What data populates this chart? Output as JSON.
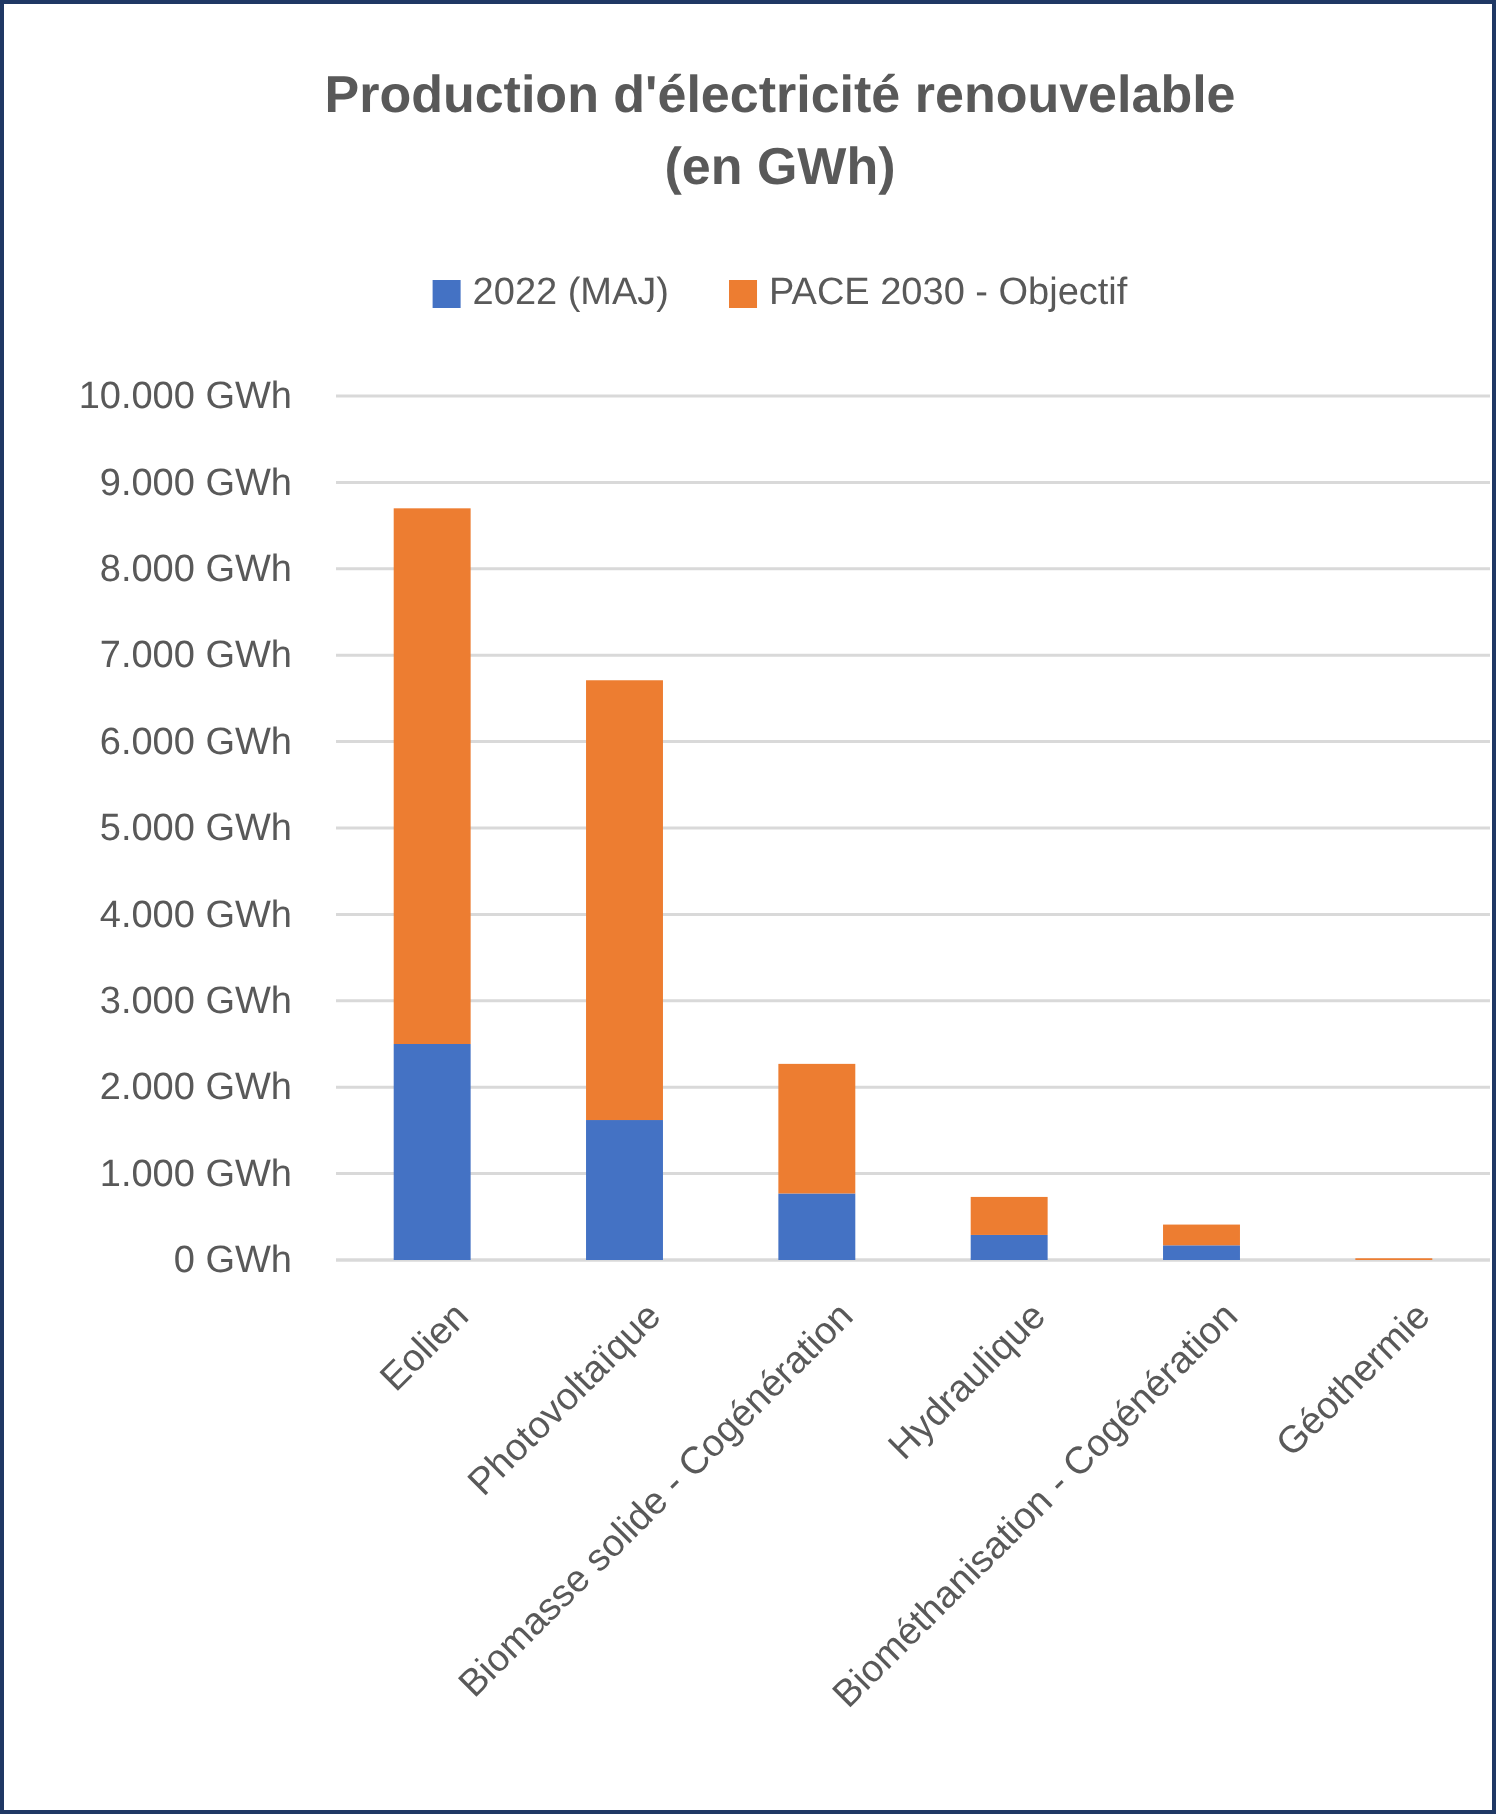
{
  "chart_data": {
    "type": "bar",
    "title": "Production d'électricité renouvelable (en GWh)",
    "categories": [
      "Eolien",
      "Photovoltaïque",
      "Biomasse solide - Cogénération",
      "Hydraulique",
      "Biométhanisation - Cogénération",
      "Géothermie"
    ],
    "series": [
      {
        "name": "2022 (MAJ)",
        "color": "#4472c4",
        "values": [
          2500,
          1620,
          770,
          290,
          170,
          0
        ]
      },
      {
        "name": "PACE 2030 - Objectif",
        "color": "#ed7d31",
        "values": [
          6200,
          5090,
          1500,
          440,
          240,
          20
        ]
      }
    ],
    "stacked": true,
    "ylim": [
      0,
      10000
    ],
    "yticks": [
      {
        "value": 0,
        "label": "0 GWh"
      },
      {
        "value": 1000,
        "label": "1.000 GWh"
      },
      {
        "value": 2000,
        "label": "2.000 GWh"
      },
      {
        "value": 3000,
        "label": "3.000 GWh"
      },
      {
        "value": 4000,
        "label": "4.000 GWh"
      },
      {
        "value": 5000,
        "label": "5.000 GWh"
      },
      {
        "value": 6000,
        "label": "6.000 GWh"
      },
      {
        "value": 7000,
        "label": "7.000 GWh"
      },
      {
        "value": 8000,
        "label": "8.000 GWh"
      },
      {
        "value": 9000,
        "label": "9.000 GWh"
      },
      {
        "value": 10000,
        "label": "10.000 GWh"
      }
    ],
    "grid": "y",
    "legend": "top"
  }
}
